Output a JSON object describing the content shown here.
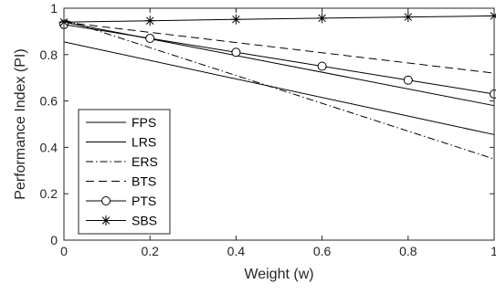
{
  "chart_data": {
    "type": "line",
    "xlabel": "Weight (w)",
    "ylabel": "Performance Index (PI)",
    "xlim": [
      0,
      1
    ],
    "ylim": [
      0,
      1
    ],
    "xticks": [
      0,
      0.2,
      0.4,
      0.6,
      0.8,
      1
    ],
    "xtick_labels": [
      "0",
      "0.2",
      "0.4",
      "0.6",
      "0.8",
      "1"
    ],
    "yticks": [
      0,
      0.2,
      0.4,
      0.6,
      0.8,
      1
    ],
    "ytick_labels": [
      "0",
      "0.2",
      "0.4",
      "0.6",
      "0.8",
      "1"
    ],
    "grid": false,
    "legend_position": "bottom-left",
    "series": [
      {
        "name": "FPS",
        "style": "solid",
        "marker": "none",
        "color": "#000000",
        "x": [
          0,
          1
        ],
        "y": [
          0.94,
          0.58
        ]
      },
      {
        "name": "LRS",
        "style": "solid",
        "marker": "none",
        "color": "#000000",
        "x": [
          0,
          1
        ],
        "y": [
          0.855,
          0.455
        ]
      },
      {
        "name": "ERS",
        "style": "dashdot",
        "marker": "none",
        "color": "#000000",
        "x": [
          0,
          1
        ],
        "y": [
          0.95,
          0.35
        ]
      },
      {
        "name": "BTS",
        "style": "dashed",
        "marker": "none",
        "color": "#000000",
        "x": [
          0,
          1
        ],
        "y": [
          0.94,
          0.72
        ]
      },
      {
        "name": "PTS",
        "style": "solid",
        "marker": "circle",
        "color": "#000000",
        "x": [
          0,
          0.2,
          0.4,
          0.6,
          0.8,
          1
        ],
        "y": [
          0.93,
          0.87,
          0.81,
          0.75,
          0.69,
          0.63
        ]
      },
      {
        "name": "SBS",
        "style": "solid",
        "marker": "asterisk",
        "color": "#000000",
        "x": [
          0,
          0.2,
          0.4,
          0.6,
          0.8,
          1
        ],
        "y": [
          0.94,
          0.946,
          0.952,
          0.957,
          0.962,
          0.967
        ]
      }
    ]
  }
}
